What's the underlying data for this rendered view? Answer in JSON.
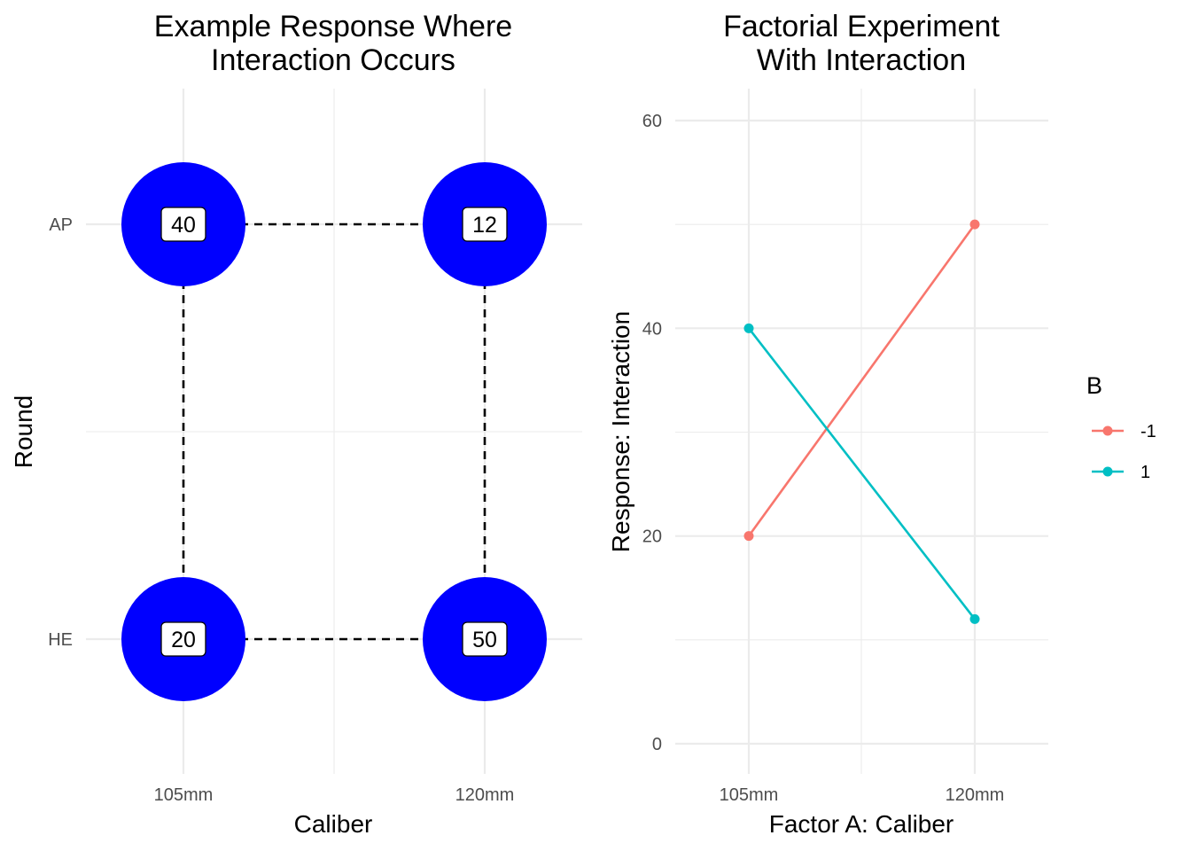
{
  "chart_data": [
    {
      "type": "scatter",
      "title_lines": [
        "Example Response Where",
        "Interaction Occurs"
      ],
      "xlabel": "Caliber",
      "ylabel": "Round",
      "x_categories": [
        "105mm",
        "120mm"
      ],
      "y_categories": [
        "AP",
        "HE"
      ],
      "point_color": "#0000ff",
      "connector_style": "dashed",
      "points": [
        {
          "x": "105mm",
          "y": "AP",
          "label": "40"
        },
        {
          "x": "120mm",
          "y": "AP",
          "label": "12"
        },
        {
          "x": "105mm",
          "y": "HE",
          "label": "20"
        },
        {
          "x": "120mm",
          "y": "HE",
          "label": "50"
        }
      ]
    },
    {
      "type": "line",
      "title_lines": [
        "Factorial Experiment",
        "With Interaction"
      ],
      "xlabel": "Factor A: Caliber",
      "ylabel": "Response: Interaction",
      "categories": [
        "105mm",
        "120mm"
      ],
      "ylim": [
        -3,
        63
      ],
      "y_ticks": [
        0,
        20,
        40,
        60
      ],
      "legend_title": "B",
      "legend_position": "right",
      "series": [
        {
          "name": "-1",
          "color": "#f8766d",
          "values": [
            20,
            50
          ]
        },
        {
          "name": "1",
          "color": "#00bfc4",
          "values": [
            40,
            12
          ]
        }
      ]
    }
  ]
}
